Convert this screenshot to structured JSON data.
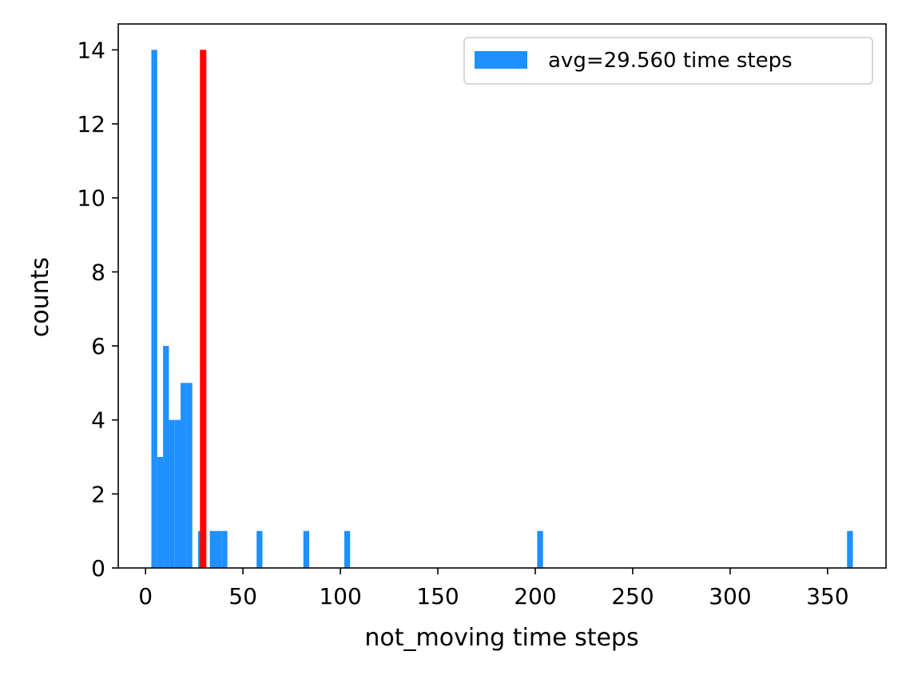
{
  "chart_data": {
    "type": "bar",
    "xlabel": "not_moving time steps",
    "ylabel": "counts",
    "xlim": [
      -14,
      380
    ],
    "ylim": [
      0,
      14.7
    ],
    "x_ticks": [
      0,
      50,
      100,
      150,
      200,
      250,
      300,
      350
    ],
    "y_ticks": [
      0,
      2,
      4,
      6,
      8,
      10,
      12,
      14
    ],
    "grid": false,
    "legend": {
      "position": "top-right",
      "entries": [
        "avg=29.560 time steps"
      ]
    },
    "series": [
      {
        "name": "avg=29.560 time steps",
        "color": "#1e90ff",
        "bin_width": 3.0,
        "bins": [
          {
            "x": 3.0,
            "count": 14
          },
          {
            "x": 6.0,
            "count": 3
          },
          {
            "x": 9.0,
            "count": 6
          },
          {
            "x": 12.0,
            "count": 4
          },
          {
            "x": 15.0,
            "count": 4
          },
          {
            "x": 18.0,
            "count": 5
          },
          {
            "x": 21.0,
            "count": 5
          },
          {
            "x": 27.0,
            "count": 1
          },
          {
            "x": 33.0,
            "count": 1
          },
          {
            "x": 36.0,
            "count": 1
          },
          {
            "x": 39.0,
            "count": 1
          },
          {
            "x": 57.0,
            "count": 1
          },
          {
            "x": 81.0,
            "count": 1
          },
          {
            "x": 102.0,
            "count": 1
          },
          {
            "x": 201.0,
            "count": 1
          },
          {
            "x": 360.0,
            "count": 1
          }
        ]
      }
    ],
    "avg_line": {
      "x": 29.56,
      "height": 14,
      "color": "#ff0000"
    }
  }
}
